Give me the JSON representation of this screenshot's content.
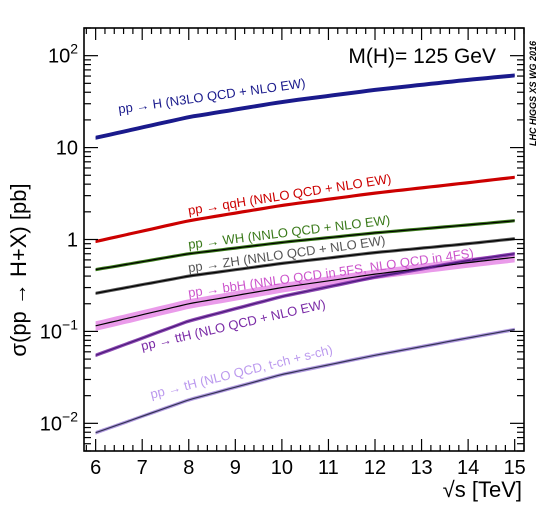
{
  "chart_data": {
    "type": "line",
    "title": "",
    "xlabel": "√s [TeV]",
    "ylabel": "σ(pp → H+X) [pb]",
    "xlim": [
      5.75,
      15.2
    ],
    "ylim": [
      0.005,
      200
    ],
    "yscale": "log",
    "grid": false,
    "legend": "none",
    "x_ticks": [
      "6",
      "7",
      "8",
      "9",
      "10",
      "11",
      "12",
      "13",
      "14",
      "15"
    ],
    "y_ticks": [
      {
        "value": 100,
        "base": "10",
        "exp": "2"
      },
      {
        "value": 10,
        "base": "10",
        "exp": ""
      },
      {
        "value": 1,
        "base": "1",
        "exp": ""
      },
      {
        "value": 0.1,
        "base": "10",
        "exp": "−1"
      },
      {
        "value": 0.01,
        "base": "10",
        "exp": "−2"
      }
    ],
    "annotation": "M(H)= 125 GeV",
    "watermark": "LHC HIGGS XS WG 2016",
    "series": [
      {
        "name": "pp → H (N3LO QCD + NLO EW)",
        "color": "#1a1a8c",
        "line_color": "#1a1a8c",
        "x": [
          6,
          8,
          10,
          12,
          14,
          15
        ],
        "y": [
          12.8,
          21.5,
          31.4,
          42.5,
          54.7,
          61.0
        ],
        "band": 0.05,
        "label_x": 6.5,
        "label_y": 23.5,
        "label_rot": -8
      },
      {
        "name": "pp → qqH (NNLO QCD + NLO EW)",
        "color": "#cc0000",
        "line_color": "#cc0000",
        "x": [
          6,
          8,
          10,
          12,
          14,
          15
        ],
        "y": [
          0.95,
          1.6,
          2.35,
          3.2,
          4.15,
          4.75
        ],
        "band": 0.008,
        "label_x": 8.0,
        "label_y": 1.85,
        "label_rot": -9
      },
      {
        "name": "pp → WH (NNLO QCD + NLO EW)",
        "color": "#3a7a1a",
        "line_color": "#000000",
        "x": [
          6,
          8,
          10,
          12,
          14,
          15
        ],
        "y": [
          0.47,
          0.7,
          0.93,
          1.18,
          1.44,
          1.6
        ],
        "band": 0.008,
        "label_x": 8.0,
        "label_y": 0.79,
        "label_rot": -7
      },
      {
        "name": "pp → ZH (NNLO QCD + NLO EW)",
        "color": "#555555",
        "line_color": "#000000",
        "x": [
          6,
          8,
          10,
          12,
          14,
          15
        ],
        "y": [
          0.26,
          0.4,
          0.55,
          0.72,
          0.9,
          1.02
        ],
        "band": 0.01,
        "label_x": 8.0,
        "label_y": 0.44,
        "label_rot": -8
      },
      {
        "name": "pp → bbH (NNLO QCD in 5FS, NLO QCD in 4FS)",
        "color": "#cc55cc",
        "line_color": "#000000",
        "band_color": "#e68ae6",
        "x": [
          6,
          8,
          10,
          12,
          14,
          15
        ],
        "y": [
          0.115,
          0.2,
          0.3,
          0.42,
          0.56,
          0.64
        ],
        "band": 0.12,
        "label_x": 8.0,
        "label_y": 0.235,
        "label_rot": -8
      },
      {
        "name": "pp → ttH (NLO QCD + NLO EW)",
        "color": "#7a2aa6",
        "line_color": "#4a1a7a",
        "band_color": "#7a2aa6",
        "x": [
          6,
          8,
          10,
          12,
          14,
          15
        ],
        "y": [
          0.055,
          0.13,
          0.24,
          0.39,
          0.59,
          0.7
        ],
        "band": 0.045,
        "label_x": 7.0,
        "label_y": 0.062,
        "label_rot": -13
      },
      {
        "name": "pp → tH (NLO QCD, t-ch + s-ch)",
        "color": "#bb99ee",
        "line_color": "#333355",
        "band_color": "#a58adb",
        "x": [
          6,
          8,
          10,
          12,
          14,
          15
        ],
        "y": [
          0.0079,
          0.018,
          0.034,
          0.055,
          0.085,
          0.105
        ],
        "band": 0.045,
        "label_x": 7.2,
        "label_y": 0.0185,
        "label_rot": -14
      }
    ]
  }
}
